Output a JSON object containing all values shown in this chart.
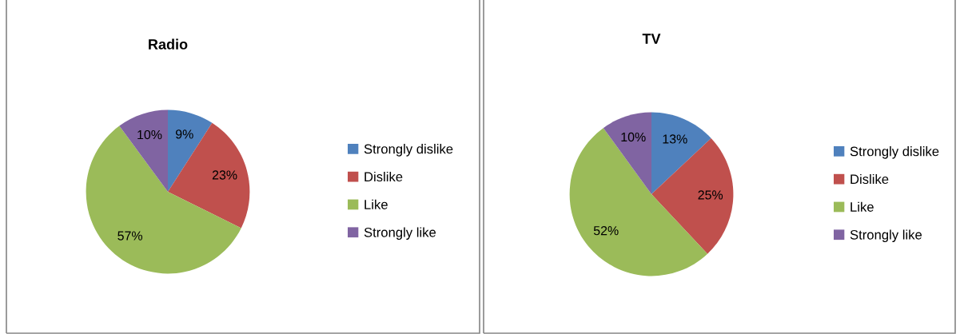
{
  "chart_data": [
    {
      "type": "pie",
      "title": "Radio",
      "categories": [
        "Strongly dislike",
        "Dislike",
        "Like",
        "Strongly like"
      ],
      "values": [
        9,
        23,
        57,
        10
      ],
      "colors": [
        "#4f81bd",
        "#c0504d",
        "#9bbb59",
        "#8064a2"
      ],
      "value_labels": [
        "9%",
        "23%",
        "57%",
        "10%"
      ],
      "legend": "right"
    },
    {
      "type": "pie",
      "title": "TV",
      "categories": [
        "Strongly dislike",
        "Dislike",
        "Like",
        "Strongly like"
      ],
      "values": [
        13,
        25,
        52,
        10
      ],
      "colors": [
        "#4f81bd",
        "#c0504d",
        "#9bbb59",
        "#8064a2"
      ],
      "value_labels": [
        "13%",
        "25%",
        "52%",
        "10%"
      ],
      "legend": "right"
    }
  ]
}
